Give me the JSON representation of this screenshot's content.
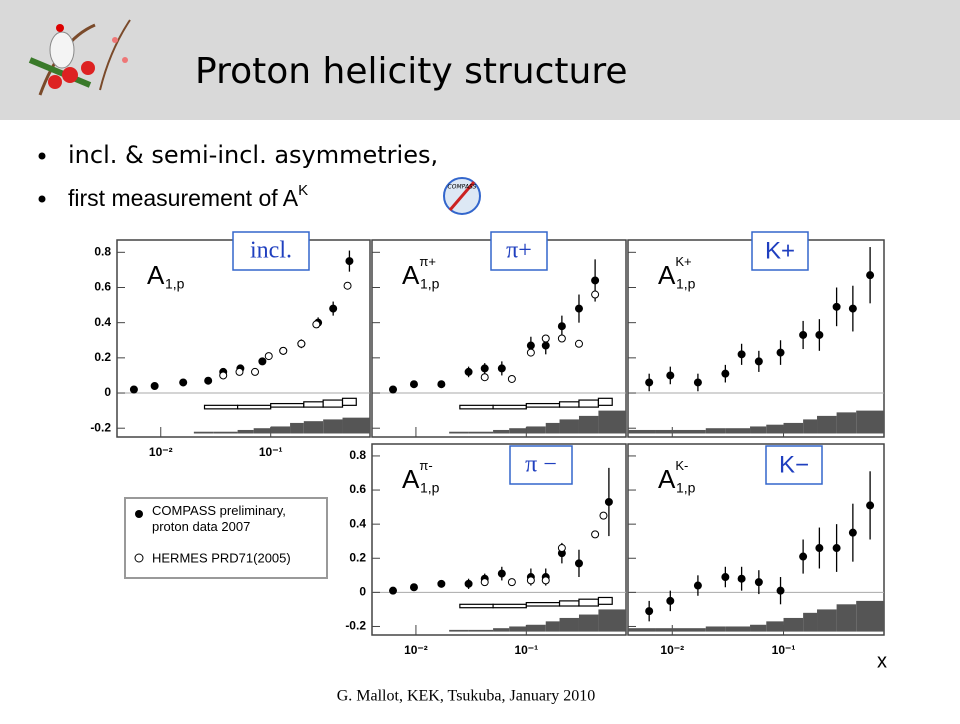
{
  "slide": {
    "title": "Proton helicity structure",
    "bullets": [
      "incl. & semi-incl.  asymmetries,",
      {
        "text": "first measurement of A",
        "sup": "K"
      }
    ],
    "x_axis_label": "x",
    "footer": "G. Mallot, KEK, Tsukuba, January 2010",
    "logo_text": "COMPASS"
  },
  "chart_data": [
    {
      "type": "scatter",
      "panel_label": "incl.",
      "ylabel": {
        "main": "A",
        "sub": "1,p",
        "sup": ""
      },
      "log_x": true,
      "xlim": [
        0.004,
        0.8
      ],
      "ylim": [
        -0.25,
        0.87
      ],
      "xticks": [
        {
          "value": 0.01,
          "label": "10⁻²"
        },
        {
          "value": 0.1,
          "label": "10⁻¹"
        }
      ],
      "show_xtick_labels": true,
      "yticks": [
        -0.2,
        0,
        0.2,
        0.4,
        0.6,
        0.8
      ],
      "show_ytick_labels": true,
      "series": [
        {
          "name": "COMPASS preliminary, proton data 2007",
          "marker": "filled",
          "color": "#000000",
          "x": [
            0.0057,
            0.0088,
            0.016,
            0.027,
            0.037,
            0.053,
            0.084,
            0.13,
            0.19,
            0.27,
            0.37,
            0.52
          ],
          "values": [
            0.02,
            0.04,
            0.06,
            0.07,
            0.12,
            0.14,
            0.18,
            0.24,
            0.28,
            0.4,
            0.48,
            0.75
          ],
          "errors": [
            0.01,
            0.01,
            0.01,
            0.01,
            0.015,
            0.015,
            0.02,
            0.02,
            0.025,
            0.03,
            0.04,
            0.06
          ]
        },
        {
          "name": "HERMES PRD71(2005)",
          "marker": "open",
          "color": "#000000",
          "x": [
            0.037,
            0.052,
            0.072,
            0.096,
            0.13,
            0.19,
            0.26,
            0.5
          ],
          "values": [
            0.1,
            0.12,
            0.12,
            0.21,
            0.24,
            0.28,
            0.39,
            0.61
          ]
        }
      ],
      "syst_band": {
        "base": -0.23,
        "bins": [
          0.004,
          0.007,
          0.02,
          0.03,
          0.05,
          0.07,
          0.1,
          0.15,
          0.2,
          0.3,
          0.45,
          0.8
        ],
        "values": [
          -0.23,
          -0.23,
          -0.22,
          -0.22,
          -0.21,
          -0.2,
          -0.19,
          -0.17,
          -0.16,
          -0.15,
          -0.14
        ]
      },
      "hermes_band": {
        "bins": [
          0.025,
          0.05,
          0.1,
          0.2,
          0.3,
          0.45,
          0.6
        ],
        "low": [
          -0.09,
          -0.09,
          -0.08,
          -0.08,
          -0.08,
          -0.07
        ],
        "high": [
          -0.07,
          -0.07,
          -0.06,
          -0.05,
          -0.04,
          -0.03
        ]
      }
    },
    {
      "type": "scatter",
      "panel_label": "π+",
      "ylabel": {
        "main": "A",
        "sub": "1,p",
        "sup": "π+"
      },
      "log_x": true,
      "xlim": [
        0.004,
        0.8
      ],
      "ylim": [
        -0.25,
        0.87
      ],
      "xticks": [
        0.01,
        0.1
      ],
      "show_xtick_labels": false,
      "yticks": [
        -0.2,
        0,
        0.2,
        0.4,
        0.6,
        0.8
      ],
      "show_ytick_labels": false,
      "series": [
        {
          "marker": "filled",
          "color": "#000000",
          "x": [
            0.0062,
            0.0096,
            0.017,
            0.03,
            0.042,
            0.06,
            0.11,
            0.15,
            0.21,
            0.3,
            0.42
          ],
          "values": [
            0.02,
            0.05,
            0.05,
            0.12,
            0.14,
            0.14,
            0.27,
            0.27,
            0.38,
            0.48,
            0.64
          ],
          "errors": [
            0.02,
            0.02,
            0.02,
            0.03,
            0.03,
            0.04,
            0.05,
            0.05,
            0.06,
            0.08,
            0.12
          ]
        },
        {
          "marker": "open",
          "color": "#000000",
          "x": [
            0.042,
            0.074,
            0.11,
            0.15,
            0.21,
            0.3,
            0.42
          ],
          "values": [
            0.09,
            0.08,
            0.23,
            0.31,
            0.31,
            0.28,
            0.56
          ]
        }
      ],
      "syst_band": {
        "base": -0.23,
        "bins": [
          0.004,
          0.007,
          0.02,
          0.03,
          0.05,
          0.07,
          0.1,
          0.15,
          0.2,
          0.3,
          0.45,
          0.8
        ],
        "values": [
          -0.23,
          -0.23,
          -0.22,
          -0.22,
          -0.21,
          -0.2,
          -0.19,
          -0.17,
          -0.15,
          -0.13,
          -0.1
        ]
      },
      "hermes_band": {
        "bins": [
          0.025,
          0.05,
          0.1,
          0.2,
          0.3,
          0.45,
          0.6
        ],
        "low": [
          -0.09,
          -0.09,
          -0.08,
          -0.08,
          -0.08,
          -0.07
        ],
        "high": [
          -0.07,
          -0.07,
          -0.06,
          -0.05,
          -0.04,
          -0.03
        ]
      }
    },
    {
      "type": "scatter",
      "panel_label": "K+",
      "ylabel": {
        "main": "A",
        "sub": "1,p",
        "sup": "K+"
      },
      "log_x": true,
      "xlim": [
        0.004,
        0.8
      ],
      "ylim": [
        -0.25,
        0.87
      ],
      "xticks": [
        0.01,
        0.1
      ],
      "show_xtick_labels": false,
      "yticks": [
        -0.2,
        0,
        0.2,
        0.4,
        0.6,
        0.8
      ],
      "show_ytick_labels": false,
      "series": [
        {
          "marker": "filled",
          "color": "#000000",
          "x": [
            0.0062,
            0.0096,
            0.017,
            0.03,
            0.042,
            0.06,
            0.094,
            0.15,
            0.21,
            0.3,
            0.42,
            0.6
          ],
          "values": [
            0.06,
            0.1,
            0.06,
            0.11,
            0.22,
            0.18,
            0.23,
            0.33,
            0.33,
            0.49,
            0.48,
            0.67
          ],
          "errors": [
            0.05,
            0.05,
            0.05,
            0.05,
            0.06,
            0.06,
            0.07,
            0.08,
            0.09,
            0.11,
            0.13,
            0.16
          ]
        }
      ],
      "syst_band": {
        "base": -0.23,
        "bins": [
          0.004,
          0.007,
          0.02,
          0.03,
          0.05,
          0.07,
          0.1,
          0.15,
          0.2,
          0.3,
          0.45,
          0.8
        ],
        "values": [
          -0.21,
          -0.21,
          -0.2,
          -0.2,
          -0.19,
          -0.18,
          -0.17,
          -0.15,
          -0.13,
          -0.11,
          -0.1
        ]
      }
    },
    {
      "type": "scatter",
      "panel_label": "π −",
      "ylabel": {
        "main": "A",
        "sub": "1,p",
        "sup": "π-"
      },
      "log_x": true,
      "xlim": [
        0.004,
        0.8
      ],
      "ylim": [
        -0.25,
        0.87
      ],
      "xticks": [
        {
          "value": 0.01,
          "label": "10⁻²"
        },
        {
          "value": 0.1,
          "label": "10⁻¹"
        }
      ],
      "show_xtick_labels": true,
      "yticks": [
        -0.2,
        0,
        0.2,
        0.4,
        0.6,
        0.8
      ],
      "show_ytick_labels": true,
      "series": [
        {
          "marker": "filled",
          "color": "#000000",
          "x": [
            0.0062,
            0.0096,
            0.017,
            0.03,
            0.042,
            0.06,
            0.11,
            0.15,
            0.21,
            0.3,
            0.56
          ],
          "values": [
            0.01,
            0.03,
            0.05,
            0.05,
            0.08,
            0.11,
            0.09,
            0.09,
            0.23,
            0.17,
            0.53
          ],
          "errors": [
            0.02,
            0.02,
            0.02,
            0.03,
            0.03,
            0.04,
            0.05,
            0.05,
            0.06,
            0.08,
            0.2
          ]
        },
        {
          "marker": "open",
          "color": "#000000",
          "x": [
            0.042,
            0.074,
            0.11,
            0.15,
            0.21,
            0.42,
            0.5
          ],
          "values": [
            0.06,
            0.06,
            0.07,
            0.07,
            0.26,
            0.34,
            0.45
          ]
        }
      ],
      "syst_band": {
        "base": -0.23,
        "bins": [
          0.004,
          0.007,
          0.02,
          0.03,
          0.05,
          0.07,
          0.1,
          0.15,
          0.2,
          0.3,
          0.45,
          0.8
        ],
        "values": [
          -0.23,
          -0.23,
          -0.22,
          -0.22,
          -0.21,
          -0.2,
          -0.19,
          -0.17,
          -0.15,
          -0.13,
          -0.1
        ]
      },
      "hermes_band": {
        "bins": [
          0.025,
          0.05,
          0.1,
          0.2,
          0.3,
          0.45,
          0.6
        ],
        "low": [
          -0.09,
          -0.09,
          -0.08,
          -0.08,
          -0.08,
          -0.07
        ],
        "high": [
          -0.07,
          -0.07,
          -0.06,
          -0.05,
          -0.04,
          -0.03
        ]
      }
    },
    {
      "type": "scatter",
      "panel_label": "K−",
      "ylabel": {
        "main": "A",
        "sub": "1,p",
        "sup": "K-"
      },
      "log_x": true,
      "xlim": [
        0.004,
        0.8
      ],
      "ylim": [
        -0.25,
        0.87
      ],
      "xticks": [
        {
          "value": 0.01,
          "label": "10⁻²"
        },
        {
          "value": 0.1,
          "label": "10⁻¹"
        }
      ],
      "show_xtick_labels": true,
      "yticks": [
        -0.2,
        0,
        0.2,
        0.4,
        0.6,
        0.8
      ],
      "show_ytick_labels": false,
      "series": [
        {
          "marker": "filled",
          "color": "#000000",
          "x": [
            0.0062,
            0.0096,
            0.017,
            0.03,
            0.042,
            0.06,
            0.094,
            0.15,
            0.21,
            0.3,
            0.42,
            0.6
          ],
          "values": [
            -0.11,
            -0.05,
            0.04,
            0.09,
            0.08,
            0.06,
            0.01,
            0.21,
            0.26,
            0.26,
            0.35,
            0.51
          ],
          "errors": [
            0.06,
            0.06,
            0.06,
            0.06,
            0.07,
            0.07,
            0.08,
            0.1,
            0.12,
            0.14,
            0.17,
            0.2
          ]
        }
      ],
      "syst_band": {
        "base": -0.23,
        "bins": [
          0.004,
          0.007,
          0.02,
          0.03,
          0.05,
          0.07,
          0.1,
          0.15,
          0.2,
          0.3,
          0.45,
          0.8
        ],
        "values": [
          -0.21,
          -0.21,
          -0.2,
          -0.2,
          -0.19,
          -0.17,
          -0.15,
          -0.12,
          -0.1,
          -0.07,
          -0.05
        ]
      }
    }
  ]
}
